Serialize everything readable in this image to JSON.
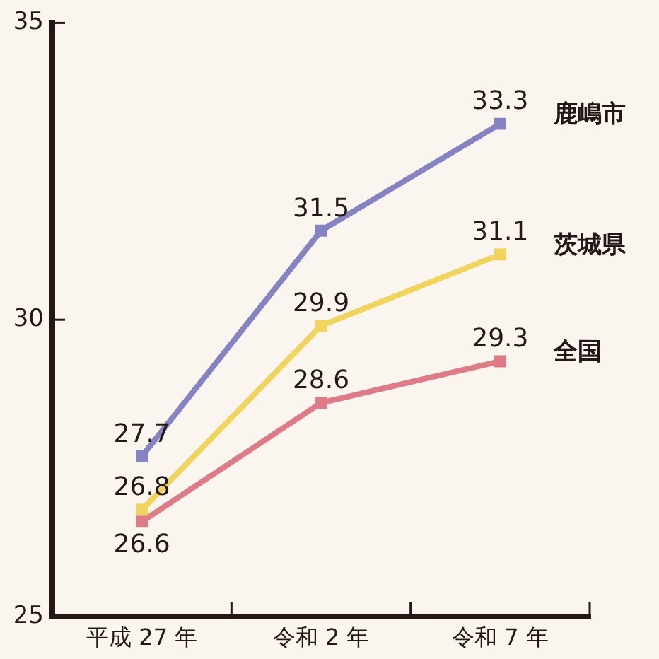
{
  "chart_data": {
    "type": "line",
    "categories": [
      "平成 27 年",
      "令和 2 年",
      "令和 7 年"
    ],
    "series": [
      {
        "name": "鹿嶋市",
        "color": "#8583c2",
        "values": [
          27.7,
          31.5,
          33.3
        ]
      },
      {
        "name": "茨城県",
        "color": "#f1d45c",
        "values": [
          26.8,
          29.9,
          31.1
        ]
      },
      {
        "name": "全国",
        "color": "#df7b87",
        "values": [
          26.6,
          28.6,
          29.3
        ]
      }
    ],
    "ylim": [
      25,
      35
    ],
    "yticks": [
      25,
      30,
      35
    ],
    "marker": "square",
    "line_style": "solid",
    "data_labels": true
  }
}
